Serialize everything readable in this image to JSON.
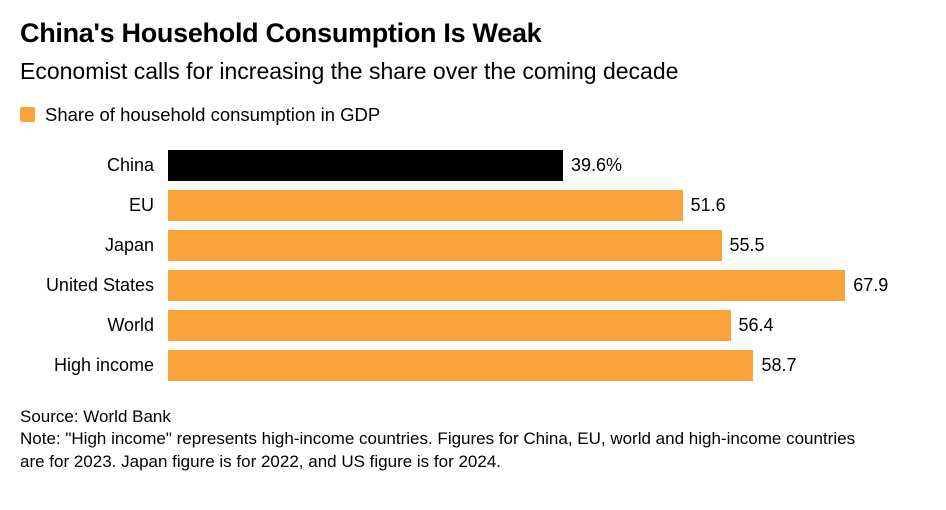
{
  "header": {
    "title": "China's Household Consumption Is Weak",
    "subtitle": "Economist calls for increasing the share over the coming decade"
  },
  "legend": {
    "label": "Share of household consumption in GDP",
    "color": "#F8A33B"
  },
  "chart_data": {
    "type": "bar",
    "orientation": "horizontal",
    "title": "China's Household Consumption Is Weak",
    "subtitle": "Economist calls for increasing the share over the coming decade",
    "series_name": "Share of household consumption in GDP",
    "categories": [
      "China",
      "EU",
      "Japan",
      "United States",
      "World",
      "High income"
    ],
    "values": [
      39.6,
      51.6,
      55.5,
      67.9,
      56.4,
      58.7
    ],
    "value_labels": [
      "39.6%",
      "51.6",
      "55.5",
      "67.9",
      "56.4",
      "58.7"
    ],
    "bar_colors": [
      "#000000",
      "#F8A33B",
      "#F8A33B",
      "#F8A33B",
      "#F8A33B",
      "#F8A33B"
    ],
    "xlim": [
      0,
      76
    ],
    "grid": false,
    "legend_position": "top-left",
    "unit": "% of GDP"
  },
  "footer": {
    "source": "Source: World Bank",
    "note": "Note: \"High income\" represents high-income countries. Figures for China, EU, world and high-income countries are for 2023. Japan figure is for 2022, and US figure is for 2024."
  }
}
